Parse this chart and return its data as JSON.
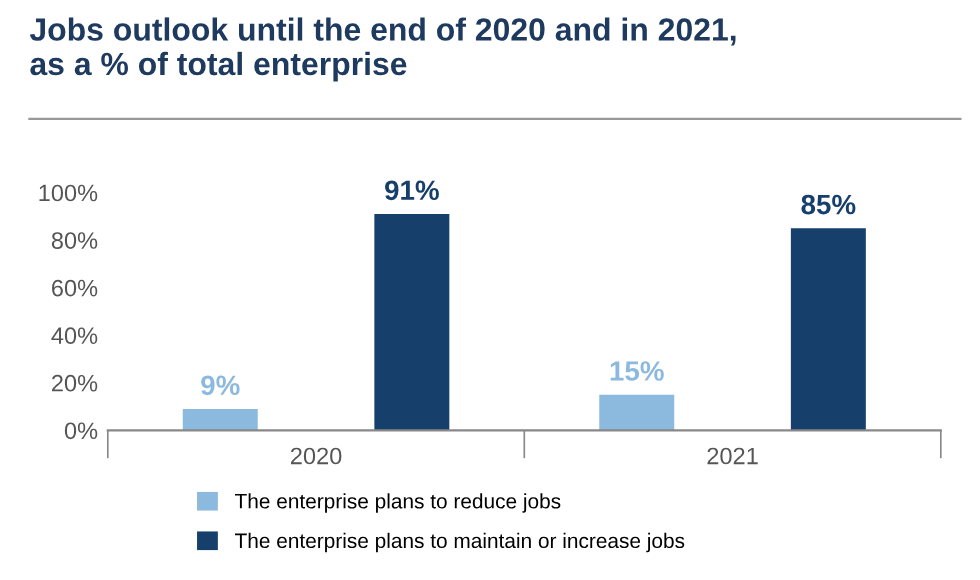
{
  "chart_data": {
    "type": "bar",
    "title": "Jobs outlook until the end of 2020 and in 2021,\nas a % of total enterprise",
    "categories": [
      "2020",
      "2021"
    ],
    "series": [
      {
        "name": "The enterprise plans to reduce jobs",
        "color": "#8cb9de",
        "values": [
          9,
          15
        ],
        "value_labels": [
          "9%",
          "15%"
        ]
      },
      {
        "name": "The enterprise plans to maintain or increase jobs",
        "color": "#173f6b",
        "values": [
          91,
          85
        ],
        "value_labels": [
          "91%",
          "85%"
        ]
      }
    ],
    "ylim": [
      0,
      100
    ],
    "yticks": [
      {
        "value": 0,
        "label": "0%"
      },
      {
        "value": 20,
        "label": "20%"
      },
      {
        "value": 40,
        "label": "40%"
      },
      {
        "value": 60,
        "label": "60%"
      },
      {
        "value": 80,
        "label": "80%"
      },
      {
        "value": 100,
        "label": "100%"
      }
    ],
    "grid": false,
    "legend": "bottom"
  }
}
